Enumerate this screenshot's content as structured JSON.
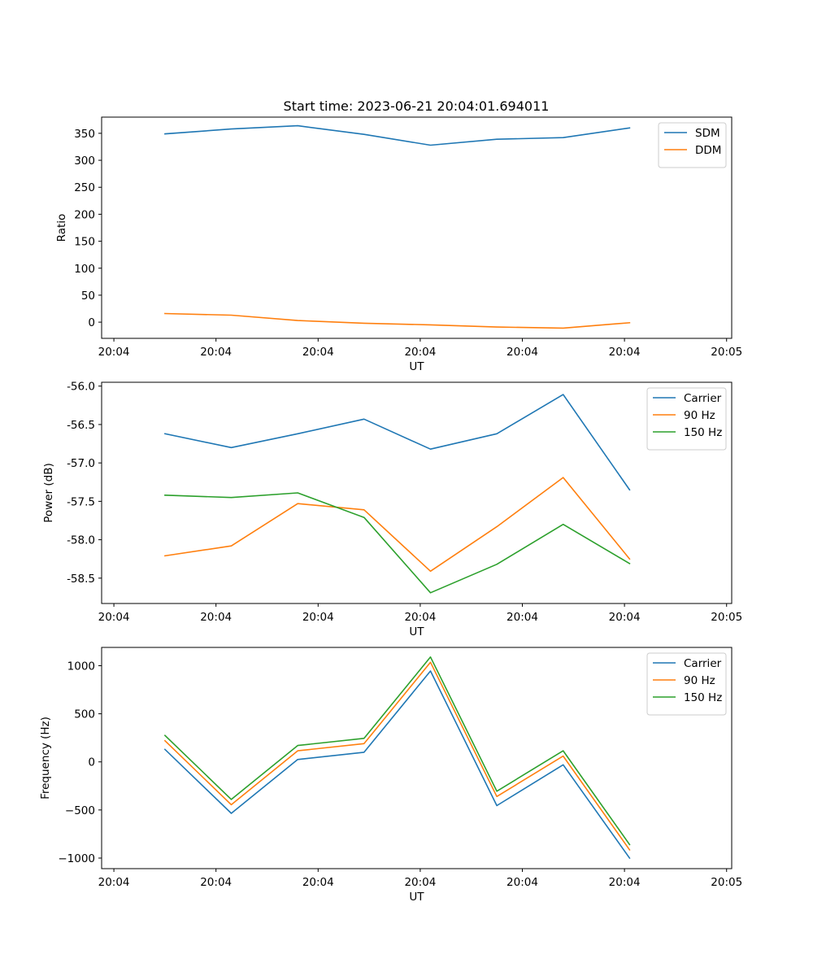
{
  "figure": {
    "title": "Start time: 2023-06-21 20:04:01.694011"
  },
  "chart_data": [
    {
      "type": "line",
      "title": "Start time: 2023-06-21 20:04:01.694011",
      "xlabel": "UT",
      "ylabel": "Ratio",
      "x_tick_labels": [
        "20:04",
        "20:04",
        "20:04",
        "20:04",
        "20:04",
        "20:04",
        "20:05"
      ],
      "y_ticks": [
        0,
        50,
        100,
        150,
        200,
        250,
        300,
        350
      ],
      "ylim": [
        -30,
        380
      ],
      "xlim": [
        -0.12,
        6.05
      ],
      "x": [
        0.5,
        1.15,
        1.8,
        2.45,
        3.1,
        3.75,
        4.4,
        5.05
      ],
      "legend_position": "upper right",
      "grid": false,
      "series": [
        {
          "name": "SDM",
          "color": "#1f77b4",
          "values": [
            349,
            358,
            364,
            348,
            328,
            339,
            342,
            360
          ]
        },
        {
          "name": "DDM",
          "color": "#ff7f0e",
          "values": [
            16,
            13,
            3,
            -2,
            -5,
            -9,
            -11,
            -1
          ]
        }
      ]
    },
    {
      "type": "line",
      "title": "",
      "xlabel": "UT",
      "ylabel": "Power (dB)",
      "x_tick_labels": [
        "20:04",
        "20:04",
        "20:04",
        "20:04",
        "20:04",
        "20:04",
        "20:05"
      ],
      "y_ticks": [
        "-56.0",
        "-56.5",
        "-57.0",
        "-57.5",
        "-58.0",
        "-58.5"
      ],
      "ylim": [
        -58.83,
        -55.95
      ],
      "xlim": [
        -0.12,
        6.05
      ],
      "x": [
        0.5,
        1.15,
        1.8,
        2.45,
        3.1,
        3.75,
        4.4,
        5.05
      ],
      "legend_position": "upper right",
      "grid": false,
      "series": [
        {
          "name": "Carrier",
          "color": "#1f77b4",
          "values": [
            -56.62,
            -56.8,
            -56.62,
            -56.43,
            -56.82,
            -56.62,
            -56.11,
            -57.35
          ]
        },
        {
          "name": "90 Hz",
          "color": "#ff7f0e",
          "values": [
            -58.21,
            -58.08,
            -57.53,
            -57.61,
            -58.41,
            -57.83,
            -57.19,
            -58.25
          ]
        },
        {
          "name": "150 Hz",
          "color": "#2ca02c",
          "values": [
            -57.42,
            -57.45,
            -57.39,
            -57.71,
            -58.69,
            -58.32,
            -57.8,
            -58.31
          ]
        }
      ]
    },
    {
      "type": "line",
      "title": "",
      "xlabel": "UT",
      "ylabel": "Frequency (Hz)",
      "x_tick_labels": [
        "20:04",
        "20:04",
        "20:04",
        "20:04",
        "20:04",
        "20:04",
        "20:05"
      ],
      "y_ticks": [
        "1000",
        "500",
        "0",
        "−500",
        "−1000"
      ],
      "y_tick_values": [
        1000,
        500,
        0,
        -500,
        -1000
      ],
      "ylim": [
        -1110,
        1190
      ],
      "xlim": [
        -0.12,
        6.05
      ],
      "x": [
        0.5,
        1.15,
        1.8,
        2.45,
        3.1,
        3.75,
        4.4,
        5.05
      ],
      "legend_position": "upper right",
      "grid": false,
      "series": [
        {
          "name": "Carrier",
          "color": "#1f77b4",
          "values": [
            130,
            -535,
            25,
            100,
            945,
            -455,
            -30,
            -1000
          ]
        },
        {
          "name": "90 Hz",
          "color": "#ff7f0e",
          "values": [
            220,
            -445,
            115,
            190,
            1035,
            -360,
            60,
            -915
          ]
        },
        {
          "name": "150 Hz",
          "color": "#2ca02c",
          "values": [
            275,
            -390,
            170,
            245,
            1090,
            -305,
            115,
            -860
          ]
        }
      ]
    }
  ]
}
